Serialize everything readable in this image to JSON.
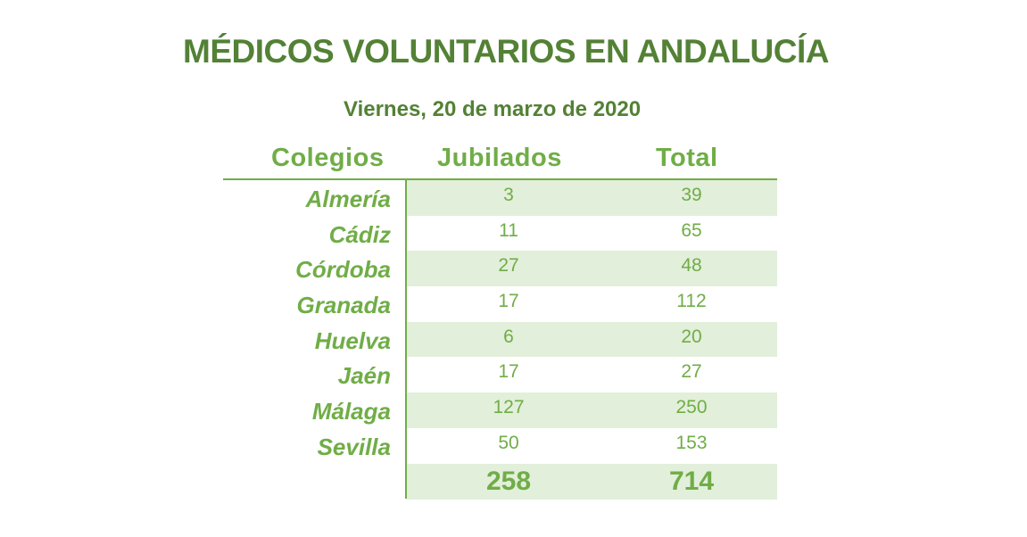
{
  "chart_data": {
    "type": "table",
    "title": "MÉDICOS VOLUNTARIOS EN ANDALUCÍA",
    "subtitle": "Viernes, 20 de marzo de 2020",
    "columns": [
      "Colegios",
      "Jubilados",
      "Total"
    ],
    "rows": [
      {
        "colegio": "Almería",
        "jubilados": "3",
        "total": "39"
      },
      {
        "colegio": "Cádiz",
        "jubilados": "11",
        "total": "65"
      },
      {
        "colegio": "Córdoba",
        "jubilados": "27",
        "total": "48"
      },
      {
        "colegio": "Granada",
        "jubilados": "17",
        "total": "112"
      },
      {
        "colegio": "Huelva",
        "jubilados": "6",
        "total": "20"
      },
      {
        "colegio": "Jaén",
        "jubilados": "17",
        "total": "27"
      },
      {
        "colegio": "Málaga",
        "jubilados": "127",
        "total": "250"
      },
      {
        "colegio": "Sevilla",
        "jubilados": "50",
        "total": "153"
      }
    ],
    "totals": {
      "jubilados": "258",
      "total": "714"
    }
  },
  "colors": {
    "title": "#538135",
    "accent": "#70ad47",
    "row_shade": "#e2efda"
  }
}
